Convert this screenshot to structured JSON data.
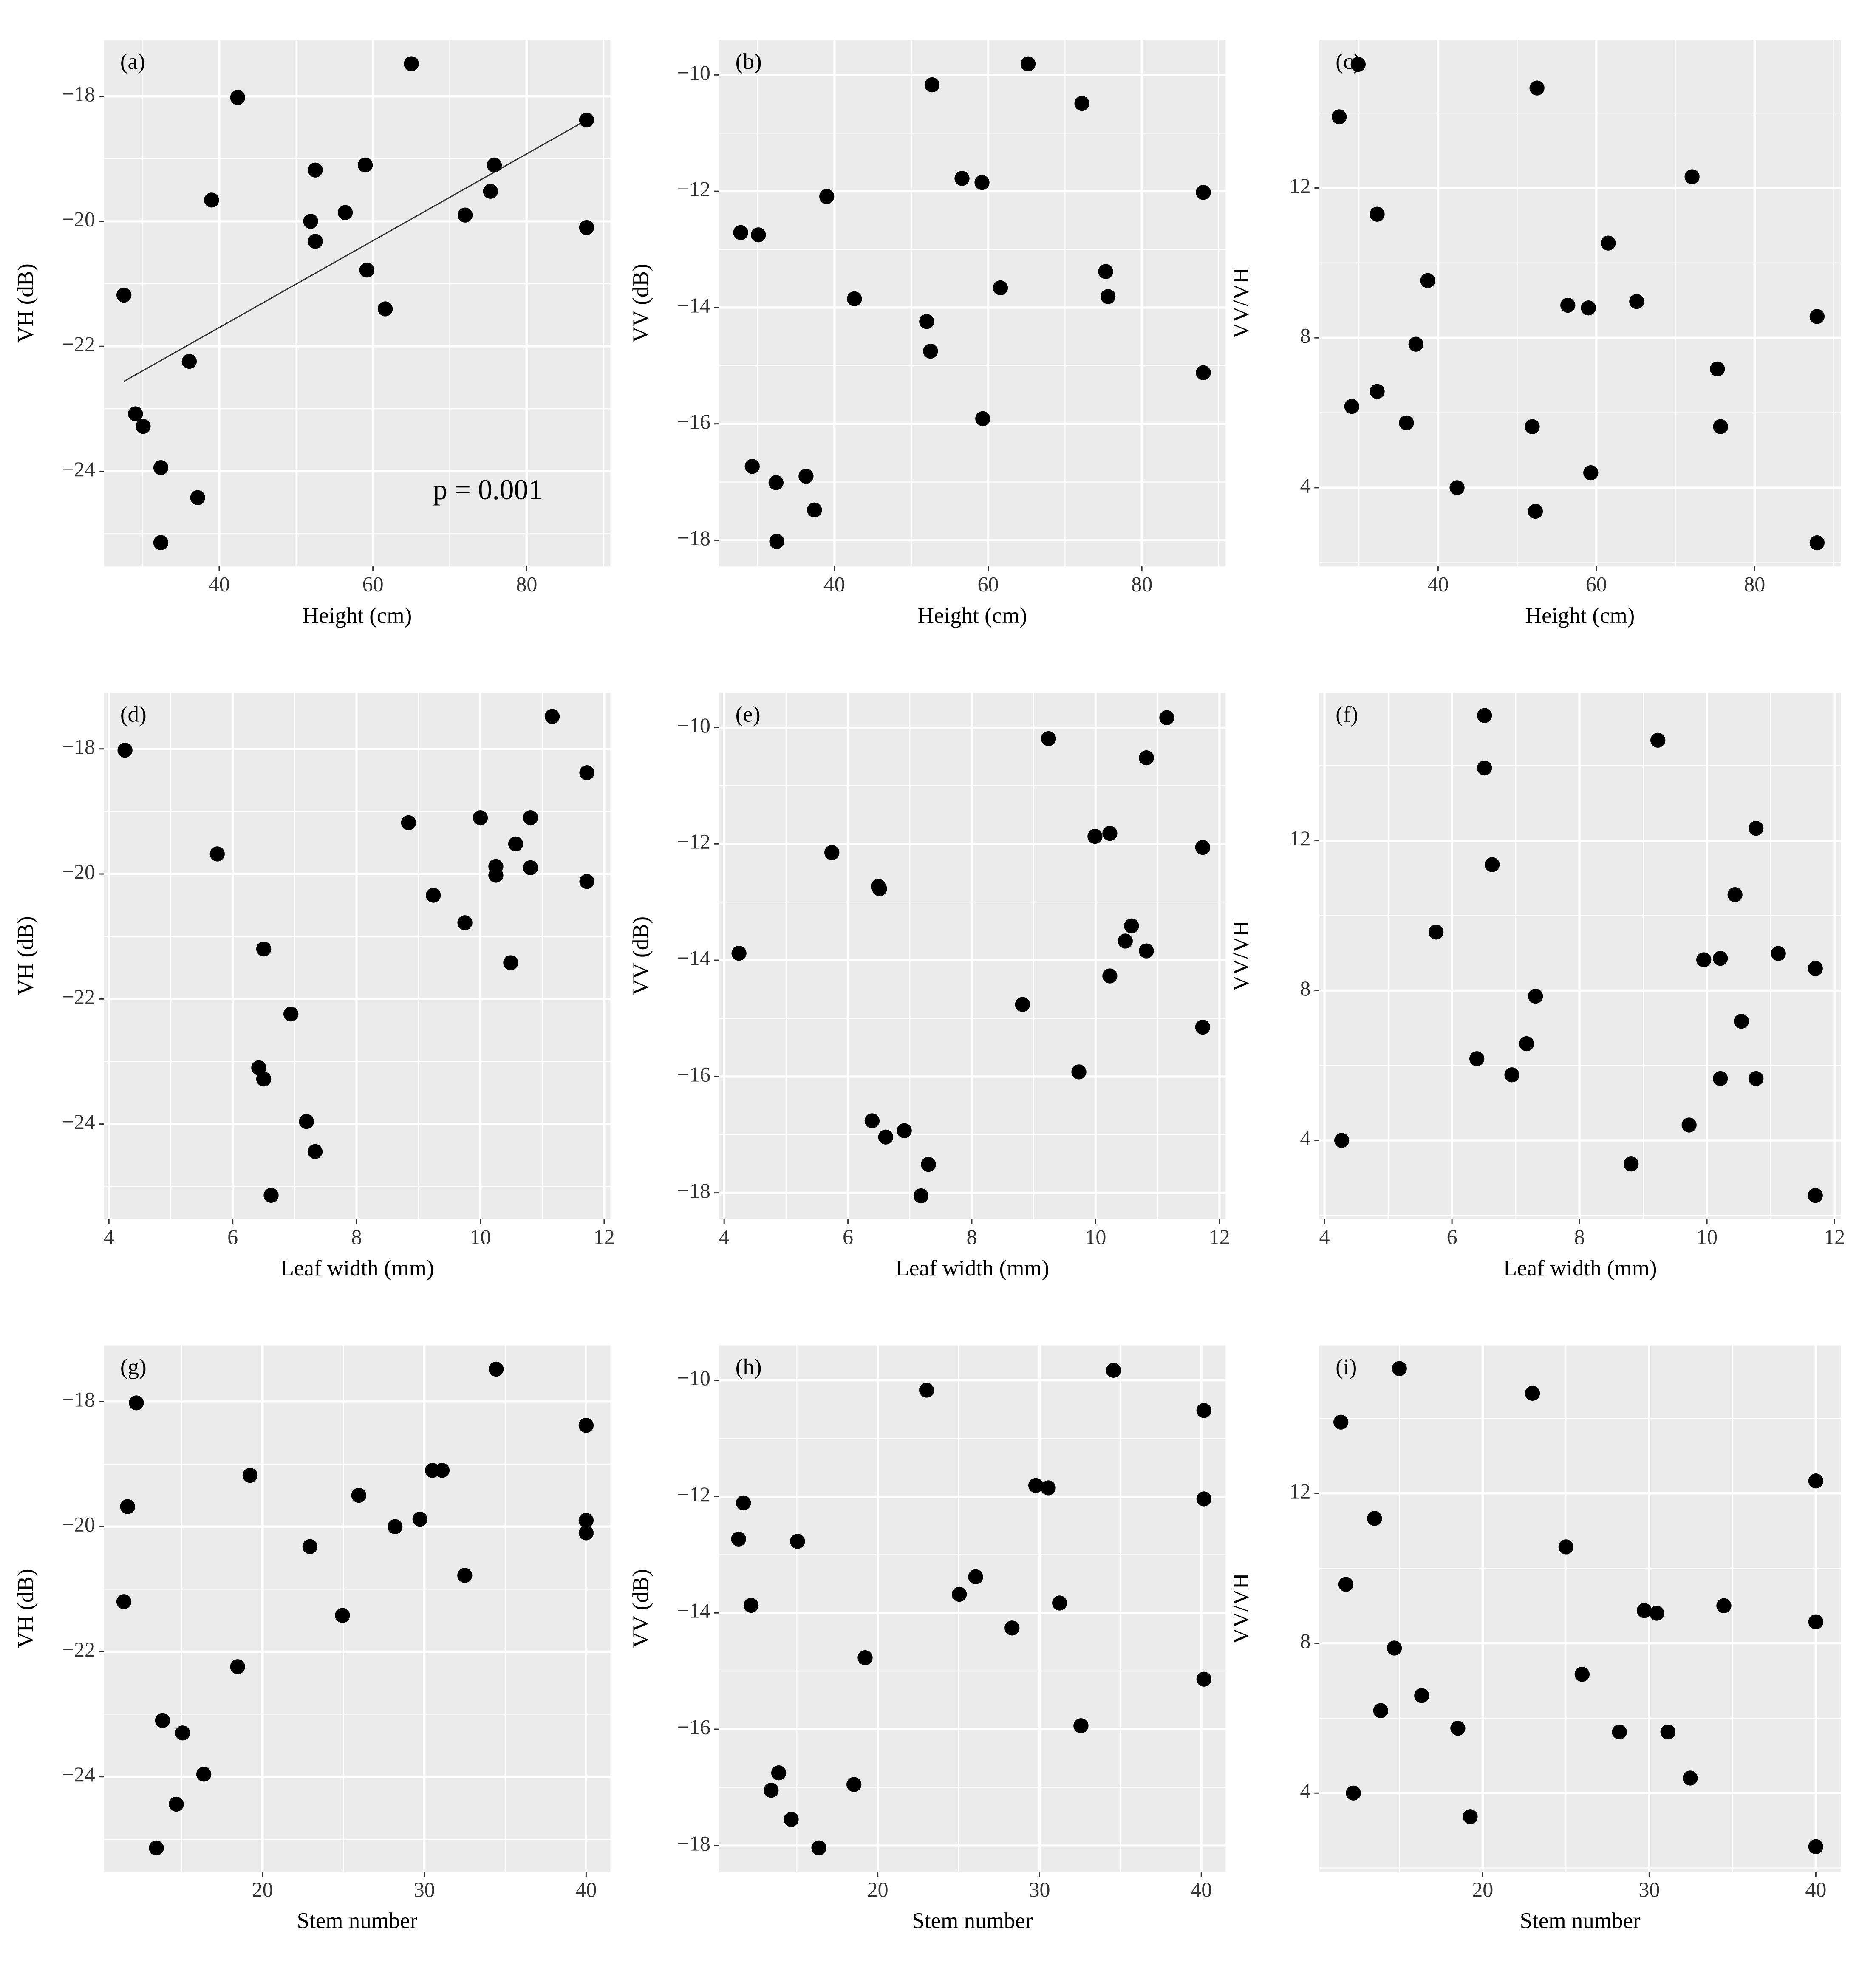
{
  "chart_data": [
    {
      "type": "scatter",
      "panel_label": "(a)",
      "xlabel": "Height (cm)",
      "ylabel": "VH (dB)",
      "annotation": "p = 0.001",
      "x": [
        27.6,
        29.1,
        30.1,
        32.4,
        32.4,
        36.1,
        37.2,
        39.0,
        42.4,
        51.9,
        52.5,
        52.5,
        56.4,
        59.0,
        59.2,
        61.6,
        65.0,
        72.0,
        75.3,
        75.8,
        87.8,
        87.8
      ],
      "y": [
        -21.18,
        -23.08,
        -23.28,
        -23.94,
        -25.14,
        -22.24,
        -24.42,
        -19.66,
        -18.02,
        -20.0,
        -20.32,
        -19.18,
        -19.86,
        -19.1,
        -20.78,
        -21.4,
        -17.48,
        -19.9,
        -19.52,
        -19.1,
        -18.38,
        -20.1
      ],
      "fit": {
        "x": [
          27.6,
          87.8
        ],
        "y": [
          -22.56,
          -18.38
        ],
        "color": "#333333"
      },
      "xlim": [
        25,
        90.9
      ],
      "ylim": [
        -25.52,
        -17.1
      ],
      "xticks": [
        40,
        60,
        80
      ],
      "yticks": [
        {
          "value": -18,
          "label": "−18"
        },
        {
          "value": -20,
          "label": "−20"
        },
        {
          "value": -22,
          "label": "−22"
        },
        {
          "value": -24,
          "label": "−24"
        }
      ],
      "color": "#000000",
      "background": "#ebebeb",
      "grid": true
    },
    {
      "type": "scatter",
      "panel_label": "(b)",
      "xlabel": "Height (cm)",
      "ylabel": "VV (dB)",
      "x": [
        27.8,
        29.3,
        30.1,
        32.4,
        32.5,
        36.3,
        37.4,
        39.0,
        42.6,
        52.0,
        52.5,
        52.7,
        56.6,
        59.2,
        59.3,
        61.6,
        65.2,
        72.2,
        75.3,
        75.6,
        88.0,
        88.0
      ],
      "y": [
        -12.71,
        -16.73,
        -12.75,
        -17.01,
        -18.02,
        -16.9,
        -17.48,
        -12.09,
        -13.85,
        -14.24,
        -14.75,
        -10.17,
        -11.78,
        -11.85,
        -15.91,
        -13.66,
        -9.81,
        -10.49,
        -13.38,
        -13.81,
        -12.02,
        -15.12
      ],
      "xlim": [
        25,
        90.9
      ],
      "ylim": [
        -18.45,
        -9.4
      ],
      "xticks": [
        40,
        60,
        80
      ],
      "yticks": [
        {
          "value": -10,
          "label": "−10"
        },
        {
          "value": -12,
          "label": "−12"
        },
        {
          "value": -14,
          "label": "−14"
        },
        {
          "value": -16,
          "label": "−16"
        },
        {
          "value": -18,
          "label": "−18"
        }
      ],
      "color": "#000000",
      "background": "#ebebeb",
      "grid": true
    },
    {
      "type": "scatter",
      "panel_label": "(c)",
      "xlabel": "Height (cm)",
      "ylabel": "VV/VH",
      "x": [
        27.5,
        29.1,
        29.9,
        32.3,
        32.3,
        36.0,
        37.2,
        38.7,
        42.4,
        51.9,
        52.3,
        52.5,
        56.4,
        59.0,
        59.3,
        61.5,
        65.1,
        72.1,
        75.3,
        75.7,
        87.9,
        87.9
      ],
      "y": [
        13.9,
        6.17,
        15.3,
        11.3,
        6.57,
        5.73,
        7.83,
        9.53,
        4.0,
        5.63,
        3.37,
        14.67,
        8.87,
        8.8,
        4.4,
        10.53,
        8.97,
        12.3,
        7.17,
        5.63,
        8.57,
        2.53
      ],
      "xlim": [
        25,
        90.9
      ],
      "ylim": [
        1.9,
        15.95
      ],
      "xticks": [
        40,
        60,
        80
      ],
      "yticks": [
        4,
        8,
        12
      ],
      "color": "#000000",
      "background": "#ebebeb",
      "grid": true
    },
    {
      "type": "scatter",
      "panel_label": "(d)",
      "xlabel": "Leaf width (mm)",
      "ylabel": "VH (dB)",
      "x": [
        4.26,
        5.75,
        6.42,
        6.5,
        6.5,
        6.62,
        6.94,
        7.19,
        7.33,
        8.84,
        9.24,
        9.75,
        10.0,
        10.25,
        10.25,
        10.49,
        10.57,
        10.81,
        10.81,
        11.16,
        11.72,
        11.72
      ],
      "y": [
        -18.02,
        -19.68,
        -23.1,
        -21.2,
        -23.28,
        -25.14,
        -22.24,
        -23.96,
        -24.44,
        -19.18,
        -20.34,
        -20.78,
        -19.1,
        -19.88,
        -20.02,
        -21.42,
        -19.52,
        -19.1,
        -19.9,
        -17.48,
        -18.38,
        -20.12
      ],
      "xlim": [
        3.92,
        12.1
      ],
      "ylim": [
        -25.52,
        -17.1
      ],
      "xticks": [
        4,
        6,
        8,
        10,
        12
      ],
      "yticks": [
        {
          "value": -18,
          "label": "−18"
        },
        {
          "value": -20,
          "label": "−20"
        },
        {
          "value": -22,
          "label": "−22"
        },
        {
          "value": -24,
          "label": "−24"
        }
      ],
      "color": "#000000",
      "background": "#ebebeb",
      "grid": true
    },
    {
      "type": "scatter",
      "panel_label": "(e)",
      "xlabel": "Leaf width (mm)",
      "ylabel": "VV (dB)",
      "x": [
        4.24,
        5.74,
        6.39,
        6.49,
        6.51,
        6.61,
        6.91,
        7.18,
        7.3,
        8.82,
        9.24,
        9.73,
        9.99,
        10.23,
        10.23,
        10.48,
        10.58,
        10.82,
        10.82,
        11.15,
        11.73,
        11.73
      ],
      "y": [
        -13.88,
        -12.15,
        -16.76,
        -12.73,
        -12.77,
        -17.04,
        -16.93,
        -18.05,
        -17.51,
        -14.76,
        -10.19,
        -15.92,
        -11.87,
        -11.82,
        -14.27,
        -13.67,
        -13.41,
        -13.84,
        -10.52,
        -9.83,
        -12.06,
        -15.15
      ],
      "xlim": [
        3.92,
        12.1
      ],
      "ylim": [
        -18.45,
        -9.4
      ],
      "xticks": [
        4,
        6,
        8,
        10,
        12
      ],
      "yticks": [
        {
          "value": -10,
          "label": "−10"
        },
        {
          "value": -12,
          "label": "−12"
        },
        {
          "value": -14,
          "label": "−14"
        },
        {
          "value": -16,
          "label": "−16"
        },
        {
          "value": -18,
          "label": "−18"
        }
      ],
      "color": "#000000",
      "background": "#ebebeb",
      "grid": true
    },
    {
      "type": "scatter",
      "panel_label": "(f)",
      "xlabel": "Leaf width (mm)",
      "ylabel": "VV/VH",
      "x": [
        4.27,
        5.75,
        6.39,
        6.51,
        6.51,
        6.63,
        6.94,
        7.17,
        7.31,
        8.81,
        9.23,
        9.72,
        9.95,
        10.21,
        10.21,
        10.44,
        10.54,
        10.77,
        10.77,
        11.12,
        11.7,
        11.7
      ],
      "y": [
        4.0,
        9.56,
        6.18,
        15.34,
        13.94,
        11.36,
        5.75,
        6.58,
        7.85,
        3.37,
        14.68,
        4.41,
        8.82,
        8.86,
        5.65,
        10.56,
        7.18,
        12.33,
        5.65,
        8.99,
        8.59,
        2.53
      ],
      "xlim": [
        3.92,
        12.1
      ],
      "ylim": [
        1.9,
        15.95
      ],
      "xticks": [
        4,
        6,
        8,
        10,
        12
      ],
      "yticks": [
        4,
        8,
        12
      ],
      "color": "#000000",
      "background": "#ebebeb",
      "grid": true
    },
    {
      "type": "scatter",
      "panel_label": "(g)",
      "xlabel": "Stem number",
      "ylabel": "VH (dB)",
      "x": [
        11.43,
        11.66,
        12.2,
        13.44,
        13.82,
        14.67,
        15.06,
        16.37,
        18.46,
        19.23,
        22.93,
        24.94,
        25.95,
        28.19,
        29.73,
        30.5,
        31.1,
        32.5,
        34.44,
        40.0,
        40.0,
        40.0
      ],
      "y": [
        -21.2,
        -19.68,
        -18.02,
        -25.14,
        -23.1,
        -24.44,
        -23.3,
        -23.96,
        -22.24,
        -19.18,
        -20.32,
        -21.42,
        -19.5,
        -20.0,
        -19.88,
        -19.1,
        -19.1,
        -20.78,
        -17.48,
        -18.38,
        -19.9,
        -20.1
      ],
      "xlim": [
        10.2,
        41.5
      ],
      "ylim": [
        -25.52,
        -17.1
      ],
      "xticks": [
        20,
        30,
        40
      ],
      "yticks": [
        {
          "value": -18,
          "label": "−18"
        },
        {
          "value": -20,
          "label": "−20"
        },
        {
          "value": -22,
          "label": "−22"
        },
        {
          "value": -24,
          "label": "−24"
        }
      ],
      "color": "#000000",
      "background": "#ebebeb",
      "grid": true
    },
    {
      "type": "scatter",
      "panel_label": "(h)",
      "xlabel": "Stem number",
      "ylabel": "VV (dB)",
      "x": [
        11.4,
        11.7,
        12.17,
        13.41,
        13.88,
        14.65,
        15.04,
        16.36,
        18.53,
        19.22,
        23.02,
        25.04,
        26.05,
        28.3,
        29.77,
        30.54,
        31.24,
        32.56,
        34.57,
        40.16,
        40.16,
        40.16
      ],
      "y": [
        -12.73,
        -12.11,
        -13.87,
        -17.05,
        -16.75,
        -17.55,
        -12.77,
        -18.04,
        -16.95,
        -14.77,
        -10.17,
        -13.68,
        -13.38,
        -14.26,
        -11.81,
        -11.85,
        -13.83,
        -15.94,
        -9.83,
        -10.52,
        -12.04,
        -15.14
      ],
      "xlim": [
        10.2,
        41.5
      ],
      "ylim": [
        -18.45,
        -9.4
      ],
      "xticks": [
        20,
        30,
        40
      ],
      "yticks": [
        {
          "value": -10,
          "label": "−10"
        },
        {
          "value": -12,
          "label": "−12"
        },
        {
          "value": -14,
          "label": "−14"
        },
        {
          "value": -16,
          "label": "−16"
        },
        {
          "value": -18,
          "label": "−18"
        }
      ],
      "color": "#000000",
      "background": "#ebebeb",
      "grid": true
    },
    {
      "type": "scatter",
      "panel_label": "(i)",
      "xlabel": "Stem number",
      "ylabel": "VV/VH",
      "x": [
        11.49,
        11.79,
        12.24,
        13.51,
        13.88,
        14.7,
        15.0,
        16.34,
        18.51,
        19.25,
        22.99,
        25.0,
        25.97,
        28.21,
        29.7,
        30.45,
        31.12,
        32.46,
        34.48,
        40.0,
        40.0,
        40.0
      ],
      "y": [
        13.9,
        9.57,
        4.0,
        11.33,
        6.2,
        7.87,
        15.33,
        6.6,
        5.73,
        3.37,
        14.67,
        10.57,
        7.17,
        5.63,
        8.87,
        8.8,
        5.63,
        4.4,
        9.0,
        12.33,
        8.57,
        2.57
      ],
      "xlim": [
        10.2,
        41.5
      ],
      "ylim": [
        1.9,
        15.95
      ],
      "xticks": [
        20,
        30,
        40
      ],
      "yticks": [
        4,
        8,
        12
      ],
      "color": "#000000",
      "background": "#ebebeb",
      "grid": true
    }
  ]
}
